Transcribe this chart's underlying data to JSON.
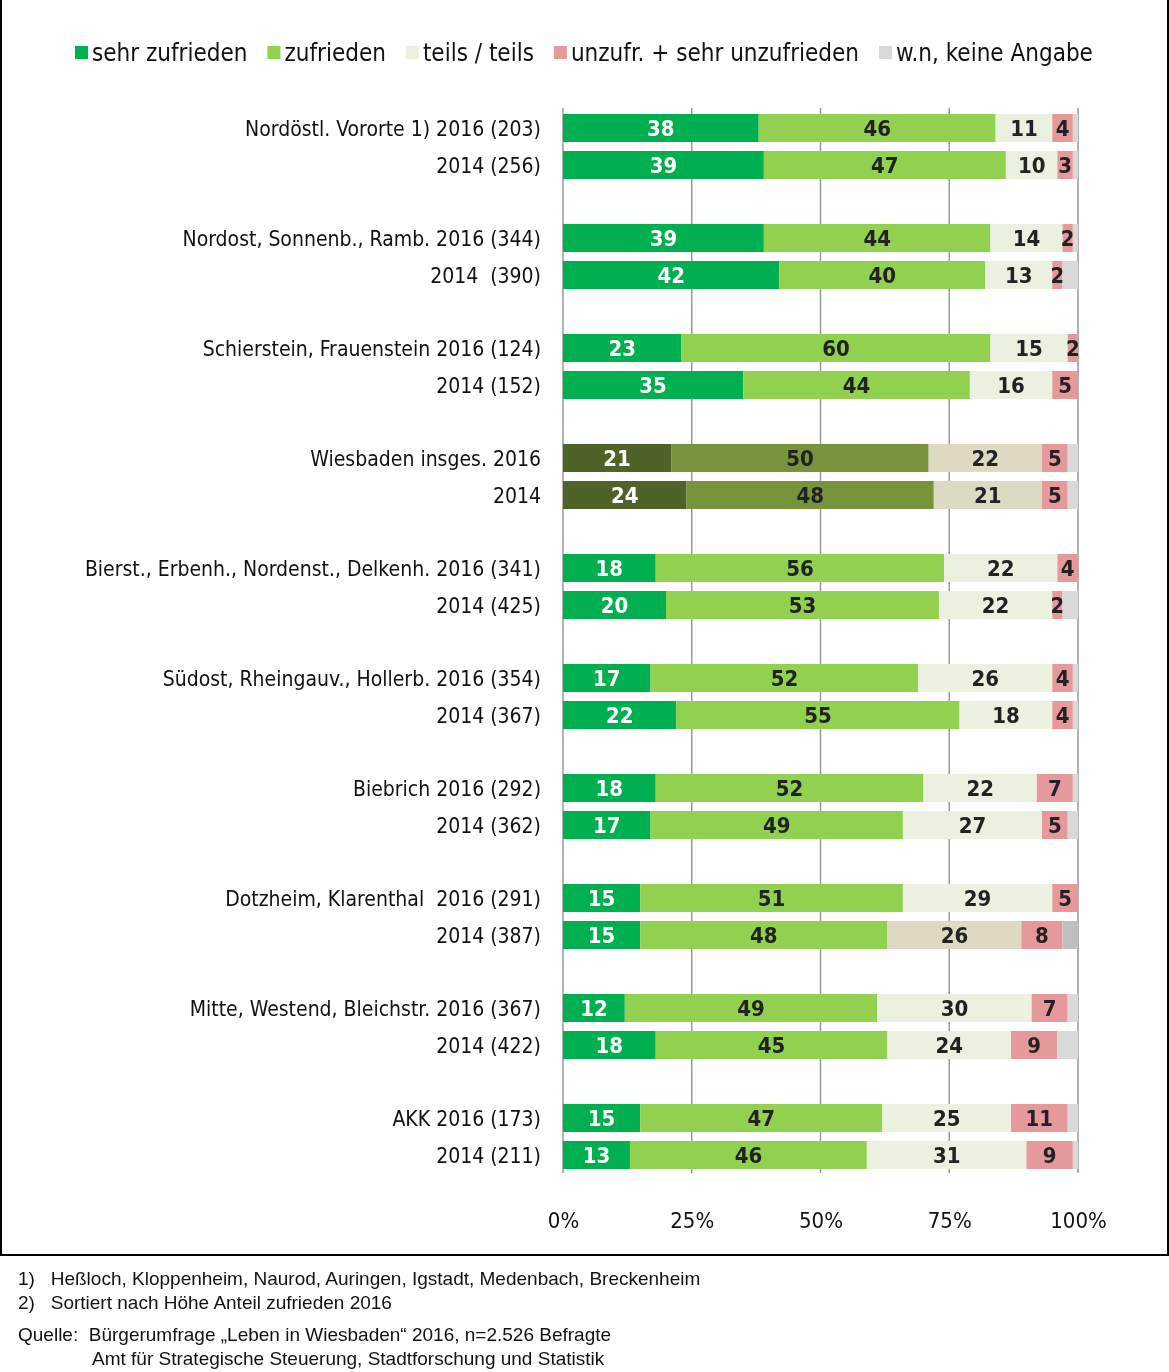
{
  "chart_data": {
    "type": "bar",
    "orientation": "horizontal",
    "stacked": true,
    "legend": "top",
    "grid": "x",
    "categories": [
      "Nordöstl. Vororte 1) 2016 (203)",
      "2014 (256)",
      "Nordost, Sonnenb., Ramb. 2016 (344)",
      "2014  (390)",
      "Schierstein, Frauenstein 2016 (124)",
      "2014 (152)",
      "Wiesbaden insges. 2016",
      "2014",
      "Bierst., Erbenh., Nordenst., Delkenh. 2016 (341)",
      "2014 (425)",
      "Südost, Rheingauv., Hollerb. 2016 (354)",
      "2014 (367)",
      "Biebrich 2016 (292)",
      "2014 (362)",
      "Dotzheim, Klarenthal  2016 (291)",
      "2014 (387)",
      "Mitte, Westend, Bleichstr. 2016 (367)",
      "2014 (422)",
      "AKK 2016 (173)",
      "2014 (211)"
    ],
    "series": [
      {
        "name": "sehr zufrieden",
        "color": "#00b050",
        "colors": [
          "#00b050",
          "#00b050",
          "#00b050",
          "#00b050",
          "#00b050",
          "#00b050",
          "#4f6228",
          "#4f6228",
          "#00b050",
          "#00b050",
          "#00b050",
          "#00b050",
          "#00b050",
          "#00b050",
          "#00b050",
          "#00b050",
          "#00b050",
          "#00b050",
          "#00b050",
          "#00b050"
        ],
        "values": [
          38,
          39,
          39,
          42,
          23,
          35,
          21,
          24,
          18,
          20,
          17,
          22,
          18,
          17,
          15,
          15,
          12,
          18,
          15,
          13
        ],
        "value_labels": [
          "38",
          "39",
          "39",
          "42",
          "23",
          "35",
          "21",
          "24",
          "18",
          "20",
          "17",
          "22",
          "18",
          "17",
          "15",
          "15",
          "12",
          "18",
          "15",
          "13"
        ]
      },
      {
        "name": "zufrieden",
        "color": "#92d050",
        "colors": [
          "#92d050",
          "#92d050",
          "#92d050",
          "#92d050",
          "#92d050",
          "#92d050",
          "#77933c",
          "#77933c",
          "#92d050",
          "#92d050",
          "#92d050",
          "#92d050",
          "#92d050",
          "#92d050",
          "#92d050",
          "#92d050",
          "#92d050",
          "#92d050",
          "#92d050",
          "#92d050"
        ],
        "values": [
          46,
          47,
          44,
          40,
          60,
          44,
          50,
          48,
          56,
          53,
          52,
          55,
          52,
          49,
          51,
          48,
          49,
          45,
          47,
          46
        ],
        "value_labels": [
          "46",
          "47",
          "44",
          "40",
          "60",
          "44",
          "50",
          "48",
          "56",
          "53",
          "52",
          "55",
          "52",
          "49",
          "51",
          "48",
          "49",
          "45",
          "47",
          "46"
        ]
      },
      {
        "name": "teils / teils",
        "color": "#ebf1de",
        "colors": [
          "#ebf1de",
          "#ebf1de",
          "#ebf1de",
          "#ebf1de",
          "#ebf1de",
          "#ebf1de",
          "#ddd9c3",
          "#ddd9c3",
          "#ebf1de",
          "#ebf1de",
          "#ebf1de",
          "#ebf1de",
          "#ebf1de",
          "#ebf1de",
          "#ebf1de",
          "#ddd9c3",
          "#ebf1de",
          "#ebf1de",
          "#ebf1de",
          "#ebf1de"
        ],
        "values": [
          11,
          10,
          14,
          13,
          15,
          16,
          22,
          21,
          22,
          22,
          26,
          18,
          22,
          27,
          29,
          26,
          30,
          24,
          25,
          31
        ],
        "value_labels": [
          "11",
          "10",
          "14",
          "13",
          "15",
          "16",
          "22",
          "21",
          "22",
          "22",
          "26",
          "18",
          "22",
          "27",
          "29",
          "26",
          "30",
          "24",
          "25",
          "31"
        ]
      },
      {
        "name": "unzufr. + sehr unzufrieden",
        "color": "#e6999a",
        "colors": [
          "#e6999a",
          "#e6999a",
          "#e6999a",
          "#e6999a",
          "#e6999a",
          "#e6999a",
          "#e6999a",
          "#e6999a",
          "#e6999a",
          "#e6999a",
          "#e6999a",
          "#e6999a",
          "#e6999a",
          "#e6999a",
          "#e6999a",
          "#e6999a",
          "#e6999a",
          "#e6999a",
          "#e6999a",
          "#e6999a"
        ],
        "values": [
          4,
          3,
          2,
          2,
          2,
          5,
          5,
          5,
          4,
          2,
          4,
          4,
          7,
          5,
          5,
          8,
          7,
          9,
          11,
          9
        ],
        "value_labels": [
          "4",
          "3",
          "2",
          "2",
          "2",
          "5",
          "5",
          "5",
          "4",
          "2",
          "4",
          "4",
          "7",
          "5",
          "5",
          "8",
          "7",
          "9",
          "11",
          "9"
        ]
      },
      {
        "name": "w.n, keine Angabe",
        "color": "#d9d9d9",
        "colors": [
          "#d9d9d9",
          "#d9d9d9",
          "#d9d9d9",
          "#d9d9d9",
          "#d9d9d9",
          "#d9d9d9",
          "#d9d9d9",
          "#d9d9d9",
          "#d9d9d9",
          "#d9d9d9",
          "#d9d9d9",
          "#d9d9d9",
          "#d9d9d9",
          "#d9d9d9",
          "#d9d9d9",
          "#bfbfbf",
          "#d9d9d9",
          "#d9d9d9",
          "#d9d9d9",
          "#d9d9d9"
        ],
        "values": [
          1,
          1,
          1,
          3,
          0,
          0,
          2,
          2,
          0,
          3,
          1,
          1,
          1,
          2,
          0,
          3,
          2,
          4,
          2,
          1
        ]
      }
    ],
    "xlim": [
      0,
      100
    ],
    "xticks": [
      {
        "value": 0,
        "label": "0%"
      },
      {
        "value": 25,
        "label": "25%"
      },
      {
        "value": 50,
        "label": "50%"
      },
      {
        "value": 75,
        "label": "75%"
      },
      {
        "value": 100,
        "label": "100%"
      }
    ],
    "annotations": [
      "1)   Heßloch, Kloppenheim, Naurod, Auringen, Igstadt, Medenbach, Breckenheim",
      "2)   Sortiert nach Höhe Anteil zufrieden 2016",
      "Quelle:  Bürgerumfrage „Leben in Wiesbaden“ 2016, n=2.526 Befragte",
      "Amt für Strategische Steuerung, Stadtforschung und Statistik"
    ]
  }
}
